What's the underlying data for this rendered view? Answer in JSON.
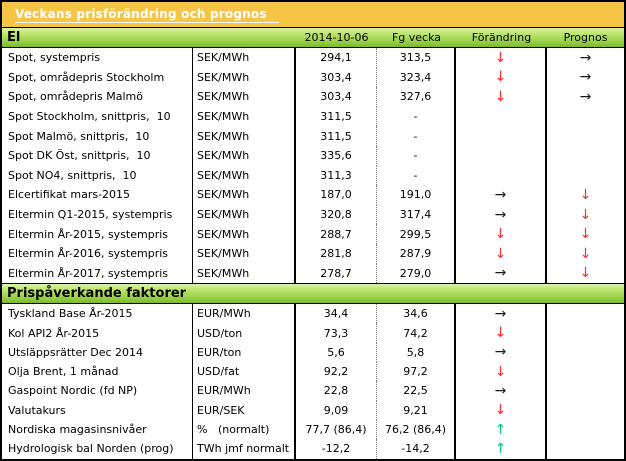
{
  "title": "Veckans prisförändring och prognos",
  "colors": {
    "title_bar": "#F6C546",
    "title_text": "#FFFFFF",
    "section_green_top": "#DCF2A6",
    "section_green_bottom": "#7CBA2C",
    "arrow_down": "#FF2A2A",
    "arrow_flat": "#1A1A1A",
    "arrow_up": "#00C781"
  },
  "sections": [
    {
      "id": "el",
      "header": "El",
      "columns": [
        "2014-10-06",
        "Fg vecka",
        "Förändring",
        "Prognos"
      ],
      "rows": [
        {
          "label": "Spot, systempris",
          "unit": "SEK/MWh",
          "current": "294,1",
          "prev": "313,5",
          "change": "down",
          "forecast": "flat"
        },
        {
          "label": "Spot, områdepris Stockholm",
          "unit": "SEK/MWh",
          "current": "303,4",
          "prev": "323,4",
          "change": "down",
          "forecast": "flat"
        },
        {
          "label": "Spot, områdepris Malmö",
          "unit": "SEK/MWh",
          "current": "303,4",
          "prev": "327,6",
          "change": "down",
          "forecast": "flat"
        },
        {
          "label": "Spot Stockholm, snittpris,  10",
          "unit": "SEK/MWh",
          "current": "311,5",
          "prev": "-",
          "change": "",
          "forecast": ""
        },
        {
          "label": "Spot Malmö, snittpris,  10",
          "unit": "SEK/MWh",
          "current": "311,5",
          "prev": "-",
          "change": "",
          "forecast": ""
        },
        {
          "label": "Spot DK Öst, snittpris,  10",
          "unit": "SEK/MWh",
          "current": "335,6",
          "prev": "-",
          "change": "",
          "forecast": ""
        },
        {
          "label": "Spot NO4, snittpris,  10",
          "unit": "SEK/MWh",
          "current": "311,3",
          "prev": "-",
          "change": "",
          "forecast": ""
        },
        {
          "label": "Elcertifikat mars-2015",
          "unit": "SEK/MWh",
          "current": "187,0",
          "prev": "191,0",
          "change": "flat",
          "forecast": "down"
        },
        {
          "label": "Eltermin Q1-2015, systempris",
          "unit": "SEK/MWh",
          "current": "320,8",
          "prev": "317,4",
          "change": "flat",
          "forecast": "down"
        },
        {
          "label": "Eltermin År-2015, systempris",
          "unit": "SEK/MWh",
          "current": "288,7",
          "prev": "299,5",
          "change": "down",
          "forecast": "down"
        },
        {
          "label": "Eltermin År-2016, systempris",
          "unit": "SEK/MWh",
          "current": "281,8",
          "prev": "287,9",
          "change": "down",
          "forecast": "down"
        },
        {
          "label": "Eltermin År-2017, systempris",
          "unit": "SEK/MWh",
          "current": "278,7",
          "prev": "279,0",
          "change": "flat",
          "forecast": "down"
        }
      ]
    },
    {
      "id": "factors",
      "header": "Prispåverkande faktorer",
      "columns": null,
      "rows": [
        {
          "label": "Tyskland Base År-2015",
          "unit": "EUR/MWh",
          "current": "34,4",
          "prev": "34,6",
          "change": "flat",
          "forecast": ""
        },
        {
          "label": "Kol API2 År-2015",
          "unit": "USD/ton",
          "current": "73,3",
          "prev": "74,2",
          "change": "down",
          "forecast": ""
        },
        {
          "label": "Utsläppsrätter Dec 2014",
          "unit": "EUR/ton",
          "current": "5,6",
          "prev": "5,8",
          "change": "flat",
          "forecast": ""
        },
        {
          "label": "Olja Brent, 1 månad",
          "unit": "USD/fat",
          "current": "92,2",
          "prev": "97,2",
          "change": "down",
          "forecast": ""
        },
        {
          "label": "Gaspoint Nordic (fd NP)",
          "unit": "EUR/MWh",
          "current": "22,8",
          "prev": "22,5",
          "change": "flat",
          "forecast": ""
        },
        {
          "label": "Valutakurs",
          "unit": "EUR/SEK",
          "current": "9,09",
          "prev": "9,21",
          "change": "down",
          "forecast": ""
        },
        {
          "label": "Nordiska magasinsnivåer",
          "unit": "%   (normalt)",
          "current": "77,7 (86,4)",
          "prev": "76,2 (86,4)",
          "change": "up",
          "forecast": ""
        },
        {
          "label": "Hydrologisk bal Norden (prog)",
          "unit": "TWh jmf normalt",
          "current": "-12,2",
          "prev": "-14,2",
          "change": "up",
          "forecast": ""
        }
      ]
    }
  ]
}
